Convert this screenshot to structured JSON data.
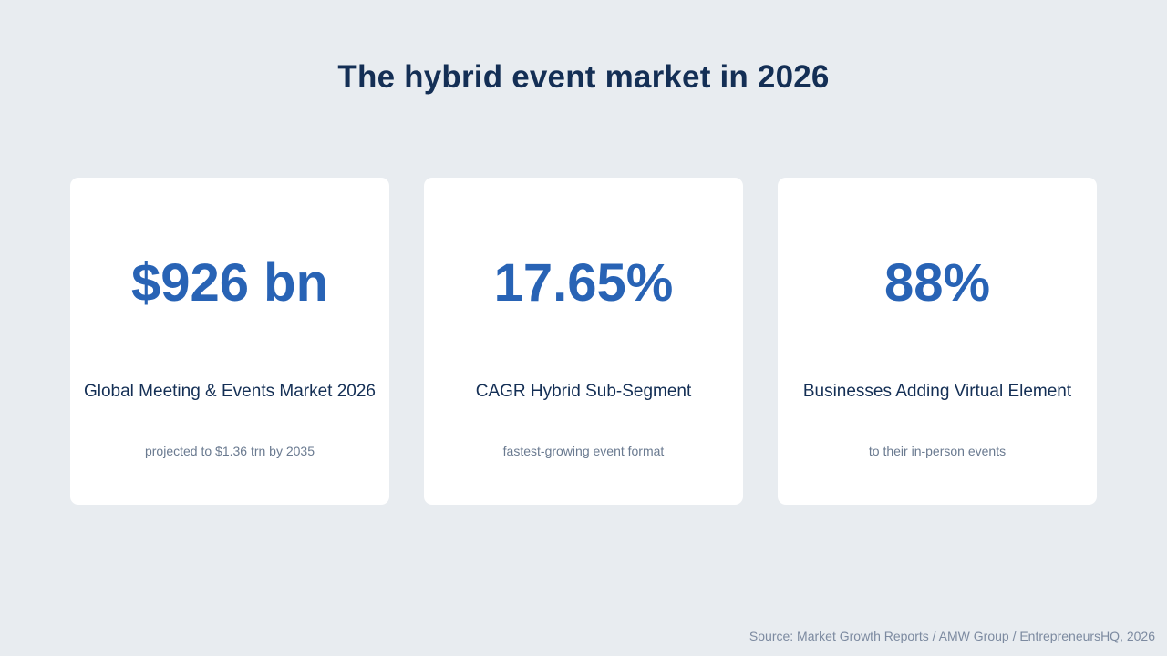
{
  "title": "The hybrid event market in 2026",
  "stats": [
    {
      "value": "$926 bn",
      "label": "Global Meeting & Events Market 2026",
      "subtitle": "projected to $1.36 trn by 2035"
    },
    {
      "value": "17.65%",
      "label": "CAGR Hybrid Sub-Segment",
      "subtitle": "fastest-growing event format"
    },
    {
      "value": "88%",
      "label": "Businesses Adding Virtual Element",
      "subtitle": "to their in-person events"
    }
  ],
  "source": "Source: Market Growth Reports / AMW Group / EntrepreneursHQ, 2026",
  "colors": {
    "background": "#e8ecf0",
    "title": "#142f55",
    "accent": "#2863b5",
    "muted": "#6a7a90",
    "card": "#ffffff"
  }
}
